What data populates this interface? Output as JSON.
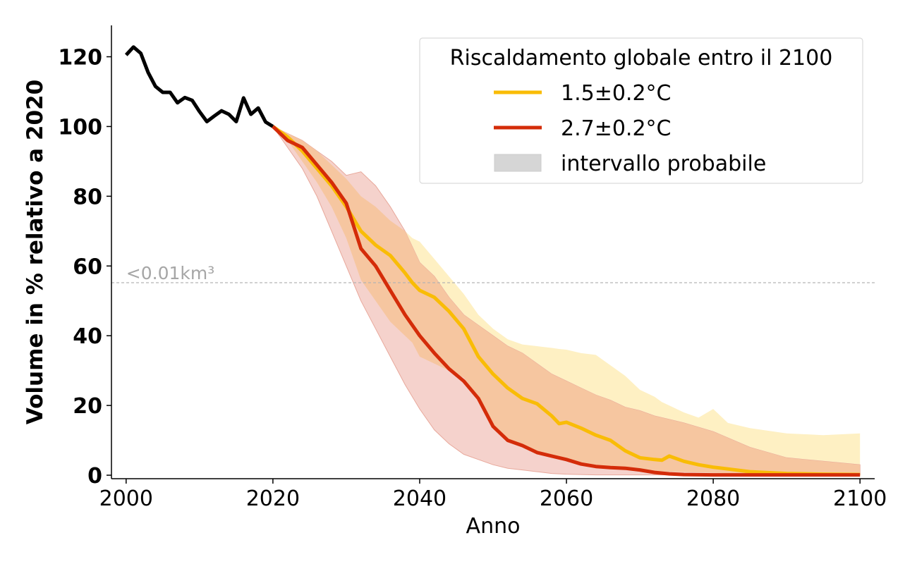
{
  "chart_data": {
    "type": "line",
    "xlabel": "Anno",
    "ylabel": "Volume in % relativo a 2020",
    "xlim": [
      1998,
      2102
    ],
    "ylim": [
      -1,
      129
    ],
    "xticks": [
      2000,
      2020,
      2040,
      2060,
      2080,
      2100
    ],
    "yticks": [
      0,
      20,
      40,
      60,
      80,
      100,
      120
    ],
    "grid": false,
    "legend": {
      "title": "Riscaldamento globale entro il 2100",
      "placement": "top-right",
      "entries": [
        "1.5±0.2°C",
        "2.7±0.2°C",
        "intervallo probabile"
      ]
    },
    "threshold": {
      "y": 55.2,
      "label": "<0.01km³",
      "color": "#b3b3b3"
    },
    "historical": {
      "color": "#000000",
      "x": [
        2000,
        2001,
        2002,
        2003,
        2004,
        2005,
        2006,
        2007,
        2008,
        2009,
        2010,
        2011,
        2012,
        2013,
        2014,
        2015,
        2016,
        2017,
        2018,
        2019,
        2020
      ],
      "y": [
        120.5,
        122.8,
        121,
        115.5,
        111.5,
        109.8,
        109.8,
        106.8,
        108.3,
        107.5,
        104.3,
        101.4,
        103,
        104.5,
        103.5,
        101.4,
        108.2,
        103.5,
        105.3,
        101.3,
        100
      ]
    },
    "series": [
      {
        "name": "1.5±0.2°C",
        "color": "#f9bc06",
        "x": [
          2020,
          2022,
          2024,
          2026,
          2028,
          2030,
          2032,
          2034,
          2036,
          2038,
          2039,
          2040,
          2042,
          2044,
          2046,
          2048,
          2050,
          2052,
          2054,
          2056,
          2058,
          2059,
          2060,
          2062,
          2064,
          2066,
          2068,
          2070,
          2072,
          2073,
          2074,
          2076,
          2078,
          2080,
          2082,
          2085,
          2090,
          2095,
          2100
        ],
        "y": [
          100,
          97,
          93,
          88,
          83,
          77,
          70,
          66,
          63,
          58,
          55.2,
          53,
          51,
          47,
          42,
          34,
          29,
          25,
          22,
          20.5,
          17,
          14.8,
          15.2,
          13.5,
          11.5,
          10,
          7,
          5,
          4.5,
          4.3,
          5.5,
          4,
          3,
          2.3,
          1.8,
          1,
          0.5,
          0.3,
          0.2
        ],
        "band_upper": [
          100,
          98,
          96,
          93,
          89,
          85,
          80,
          77,
          73,
          70,
          68,
          67,
          62,
          57,
          52,
          46,
          42,
          39,
          37.5,
          37,
          36.5,
          36.2,
          36,
          35,
          34.5,
          31.5,
          28.5,
          24.5,
          22.5,
          21,
          20,
          18,
          16.5,
          19,
          15,
          13.5,
          12,
          11.5,
          12
        ],
        "band_lower": [
          100,
          96,
          90,
          84,
          77,
          68,
          56,
          50,
          44,
          40,
          38,
          34,
          32,
          30,
          28,
          22,
          14,
          10,
          8,
          6,
          5,
          4.8,
          4.5,
          3,
          2.5,
          2,
          1.5,
          1.3,
          1.2,
          1.1,
          1,
          0.9,
          0.8,
          0.7,
          0.6,
          0.5,
          0.4,
          0.3,
          0.2
        ],
        "band_color": "#fef0c3"
      },
      {
        "name": "2.7±0.2°C",
        "color": "#d42c09",
        "x": [
          2020,
          2022,
          2024,
          2026,
          2028,
          2030,
          2032,
          2034,
          2036,
          2038,
          2040,
          2042,
          2044,
          2046,
          2048,
          2050,
          2052,
          2054,
          2056,
          2058,
          2060,
          2062,
          2064,
          2066,
          2068,
          2070,
          2072,
          2074,
          2076,
          2080,
          2085,
          2090,
          2095,
          2100
        ],
        "y": [
          100,
          96,
          94,
          89,
          84,
          78,
          65,
          60,
          53,
          46,
          40,
          35,
          30.5,
          27,
          22,
          14,
          10,
          8.5,
          6.5,
          5.5,
          4.5,
          3.2,
          2.5,
          2.2,
          2,
          1.5,
          0.8,
          0.4,
          0.2,
          0.1,
          0.1,
          0.1,
          0.1,
          0.1
        ],
        "band_upper": [
          100,
          98,
          96,
          93,
          90,
          86,
          87,
          83,
          77,
          70,
          61,
          57,
          51,
          46,
          43,
          40,
          37,
          35,
          32,
          29,
          27,
          25,
          23,
          21.5,
          19.5,
          18.5,
          17,
          16,
          15,
          12.5,
          8,
          5,
          4,
          3
        ],
        "band_lower": [
          100,
          94,
          88,
          80,
          70,
          60,
          50,
          42,
          34,
          26,
          19,
          13,
          9,
          6,
          4.5,
          3,
          2,
          1.5,
          1,
          0.5,
          0.3,
          0.2,
          0.1,
          0.1,
          0.1,
          0.1,
          0.1,
          0.1,
          0.1,
          0.1,
          0.1,
          0.1,
          0.1,
          0.1
        ],
        "band_color": "#f5d2cc"
      }
    ],
    "overlap_color": "#f6c6a0"
  }
}
